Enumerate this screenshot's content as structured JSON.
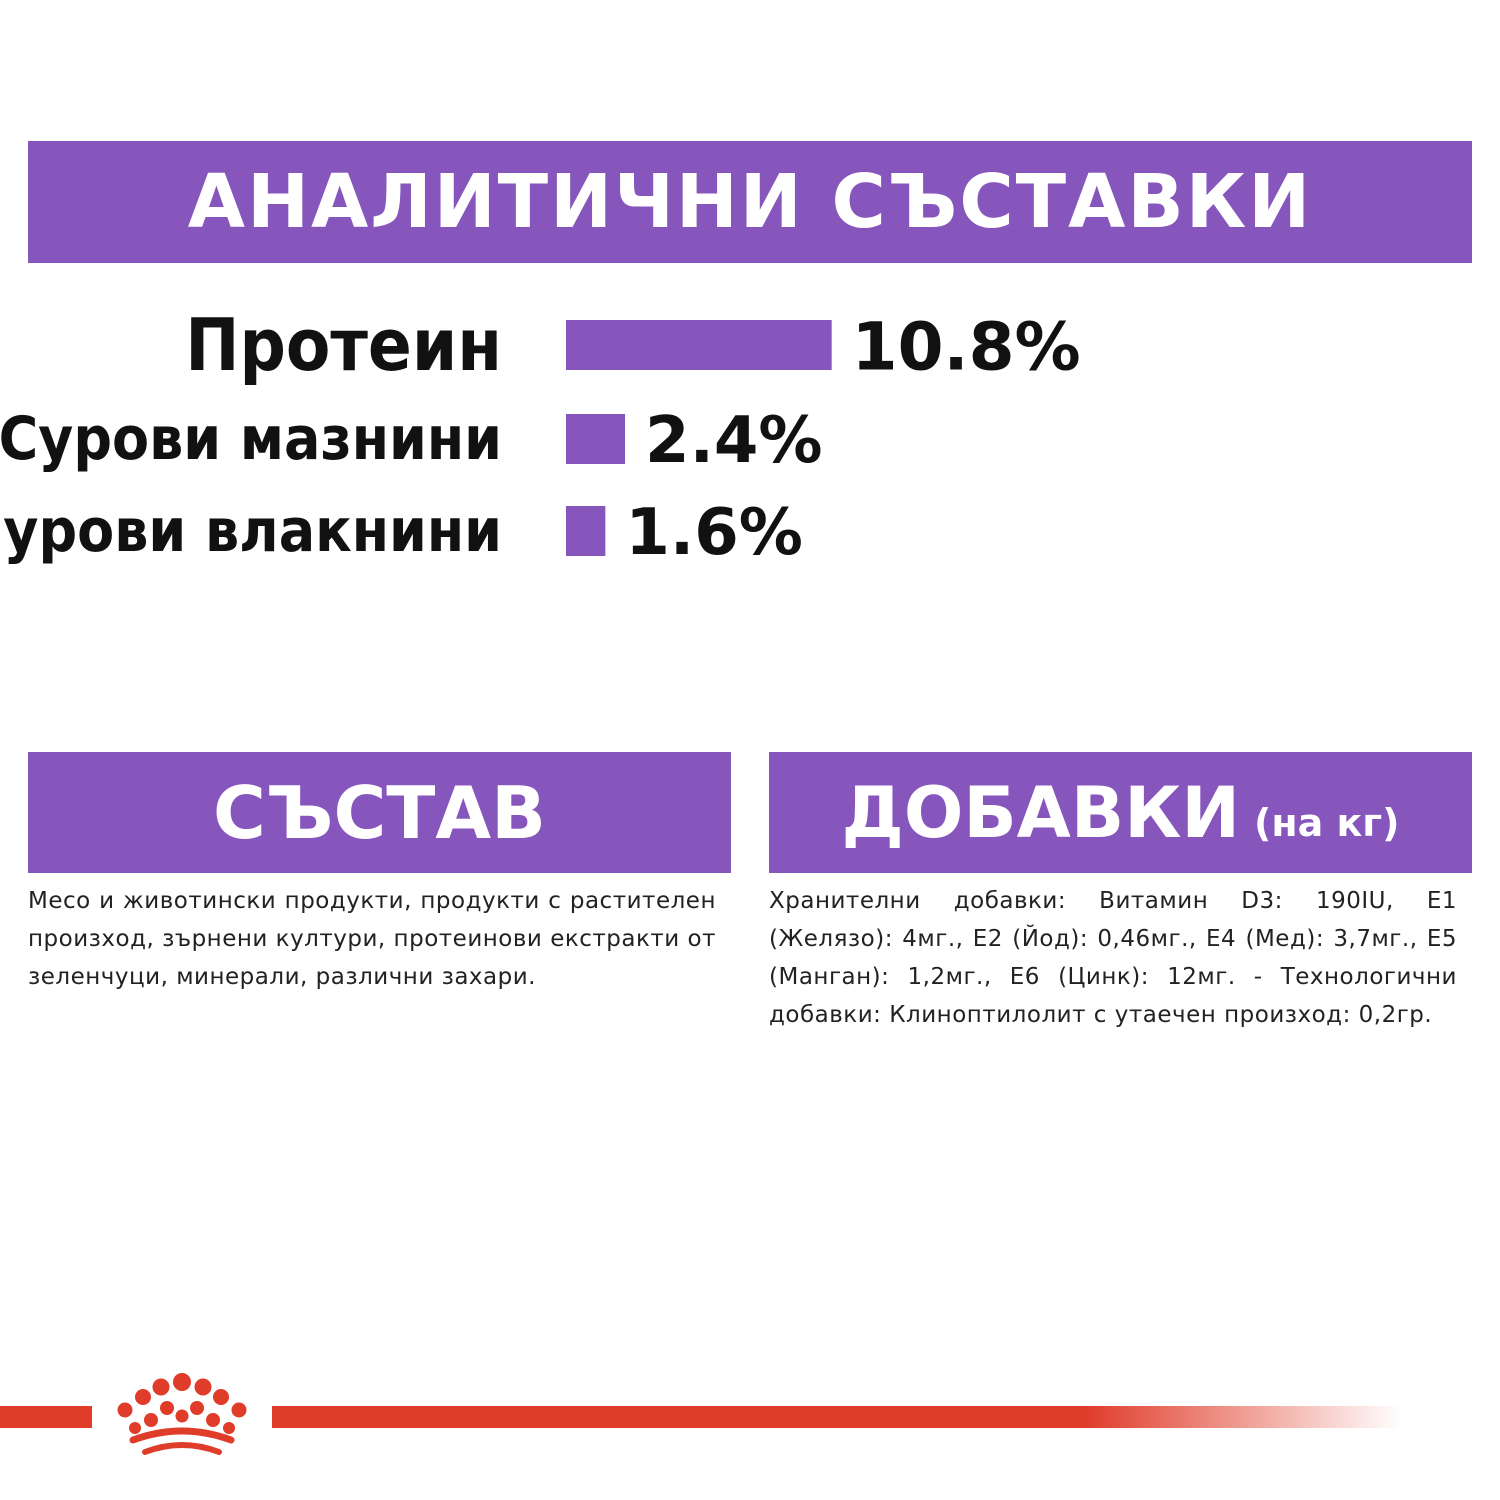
{
  "analytic_title": "АНАЛИТИЧНИ СЪСТАВКИ",
  "chart_data": {
    "type": "bar",
    "orientation": "horizontal",
    "title": "",
    "categories": [
      "Протеин",
      "Сурови мазнини",
      "Сурови влакнини"
    ],
    "values": [
      10.8,
      2.4,
      1.6
    ],
    "value_labels": [
      "10.8%",
      "2.4%",
      "1.6%"
    ],
    "unit": "%",
    "grid": false,
    "bar_color": "#8756bd"
  },
  "composition": {
    "title": "СЪСТАВ",
    "text": "Месо и животински продукти, продукти с растителен произход, зърнени култури, протеинови екстракти от зеленчуци, минерали, различни захари."
  },
  "additives": {
    "title": "ДОБАВКИ",
    "subtitle": "(на кг)",
    "text": "Хранителни добавки: Витамин D3: 190IU, E1 (Желязо): 4мг., E2 (Йод): 0,46мг., E4 (Мед): 3,7мг., E5 (Манган): 1,2мг., E6 (Цинк): 12мг. - Технологични добавки: Клиноптилолит с утаечен произход: 0,2гр."
  },
  "colors": {
    "accent": "#8756bd",
    "brand_red": "#e03c2a",
    "text": "#111111"
  },
  "logo_icon": "royal-canin-crown-icon"
}
